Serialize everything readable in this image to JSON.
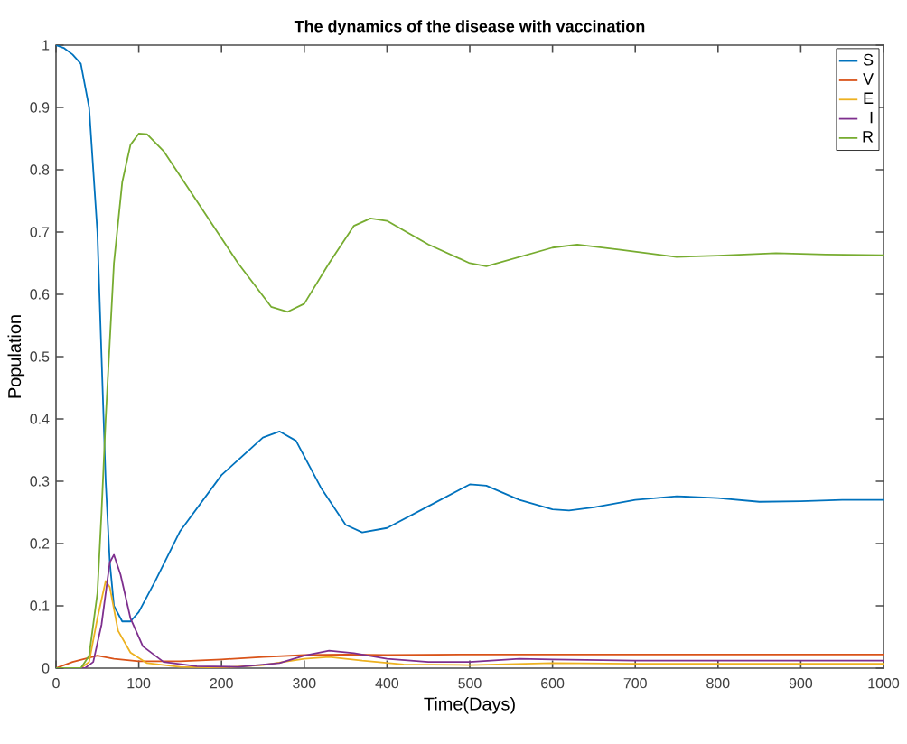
{
  "chart_data": {
    "type": "line",
    "title": "The dynamics of the disease with vaccination",
    "xlabel": "Time(Days)",
    "ylabel": "Population",
    "xlim": [
      0,
      1000
    ],
    "ylim": [
      0,
      1
    ],
    "xticks": [
      0,
      100,
      200,
      300,
      400,
      500,
      600,
      700,
      800,
      900,
      1000
    ],
    "yticks": [
      0,
      0.1,
      0.2,
      0.3,
      0.4,
      0.5,
      0.6,
      0.7,
      0.8,
      0.9,
      1
    ],
    "legend": "top right",
    "grid": false,
    "marker": "none",
    "line_style": "solid",
    "series": [
      {
        "name": "S",
        "color": "#0072bd",
        "x": [
          0,
          10,
          20,
          30,
          40,
          50,
          55,
          60,
          65,
          70,
          80,
          90,
          100,
          120,
          150,
          200,
          250,
          270,
          290,
          320,
          350,
          370,
          400,
          450,
          500,
          520,
          560,
          600,
          620,
          650,
          700,
          750,
          800,
          850,
          900,
          950,
          1000
        ],
        "values": [
          1,
          0.995,
          0.985,
          0.97,
          0.9,
          0.7,
          0.5,
          0.3,
          0.17,
          0.1,
          0.075,
          0.075,
          0.09,
          0.14,
          0.22,
          0.31,
          0.37,
          0.38,
          0.365,
          0.29,
          0.23,
          0.218,
          0.225,
          0.26,
          0.295,
          0.293,
          0.27,
          0.255,
          0.253,
          0.258,
          0.27,
          0.276,
          0.273,
          0.267,
          0.268,
          0.27,
          0.27
        ]
      },
      {
        "name": "V",
        "color": "#d95319",
        "x": [
          0,
          20,
          50,
          70,
          100,
          150,
          200,
          250,
          300,
          350,
          400,
          500,
          600,
          700,
          1000
        ],
        "values": [
          0,
          0.01,
          0.02,
          0.015,
          0.011,
          0.011,
          0.014,
          0.018,
          0.021,
          0.022,
          0.021,
          0.022,
          0.022,
          0.022,
          0.022
        ]
      },
      {
        "name": "E",
        "color": "#edb120",
        "x": [
          0,
          30,
          40,
          50,
          60,
          65,
          75,
          90,
          110,
          150,
          200,
          250,
          300,
          330,
          370,
          420,
          500,
          600,
          700,
          800,
          1000
        ],
        "values": [
          0,
          0,
          0.01,
          0.08,
          0.14,
          0.13,
          0.06,
          0.025,
          0.008,
          0.002,
          0.001,
          0.005,
          0.015,
          0.018,
          0.012,
          0.006,
          0.005,
          0.008,
          0.007,
          0.007,
          0.007
        ]
      },
      {
        "name": "I",
        "color": "#7e2f8e",
        "x": [
          0,
          35,
          45,
          55,
          65,
          70,
          78,
          90,
          105,
          130,
          170,
          220,
          270,
          300,
          330,
          360,
          400,
          450,
          500,
          560,
          600,
          700,
          800,
          1000
        ],
        "values": [
          0,
          0,
          0.01,
          0.07,
          0.17,
          0.182,
          0.15,
          0.08,
          0.035,
          0.01,
          0.003,
          0.002,
          0.008,
          0.02,
          0.028,
          0.024,
          0.015,
          0.01,
          0.01,
          0.015,
          0.014,
          0.012,
          0.012,
          0.012
        ]
      },
      {
        "name": "R",
        "color": "#77ac30",
        "x": [
          0,
          30,
          40,
          50,
          55,
          60,
          70,
          80,
          90,
          100,
          110,
          130,
          170,
          220,
          260,
          280,
          300,
          330,
          360,
          380,
          400,
          450,
          500,
          520,
          560,
          600,
          630,
          680,
          750,
          800,
          870,
          930,
          1000
        ],
        "values": [
          0,
          0,
          0.02,
          0.12,
          0.25,
          0.4,
          0.65,
          0.78,
          0.84,
          0.858,
          0.857,
          0.83,
          0.75,
          0.65,
          0.58,
          0.572,
          0.585,
          0.65,
          0.71,
          0.722,
          0.718,
          0.68,
          0.65,
          0.645,
          0.66,
          0.675,
          0.68,
          0.672,
          0.66,
          0.662,
          0.666,
          0.664,
          0.663
        ]
      }
    ]
  }
}
